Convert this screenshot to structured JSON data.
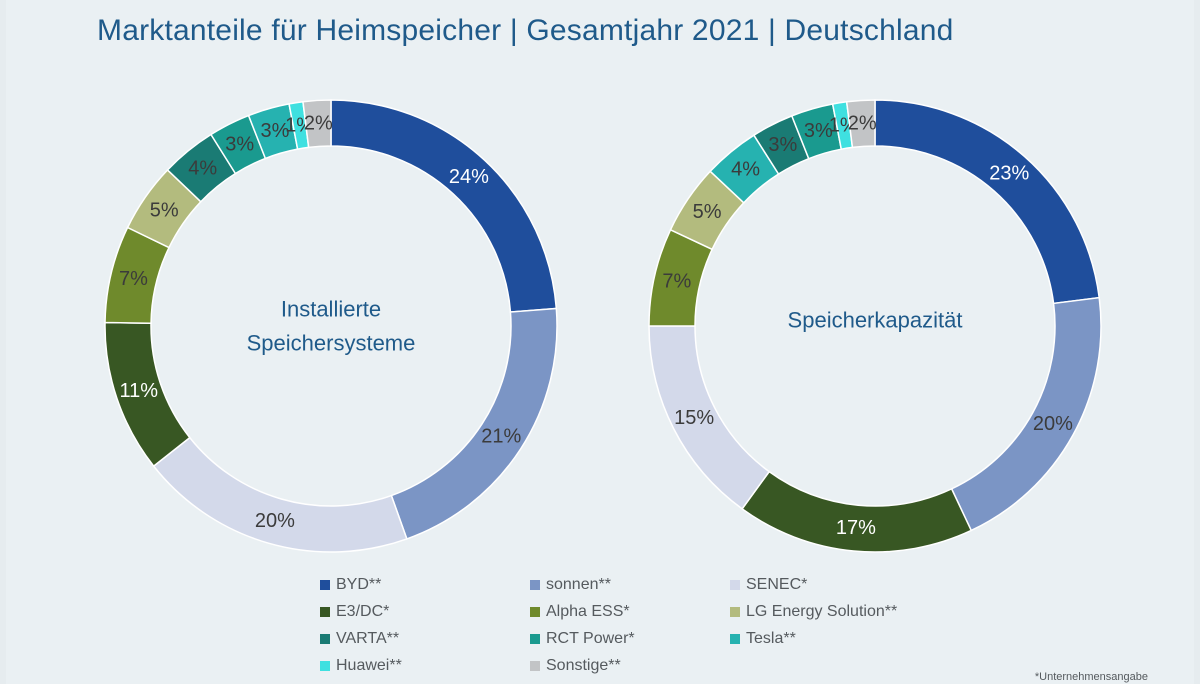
{
  "title": "Marktanteile für Heimspeicher | Gesamtjahr 2021 | Deutschland",
  "footnote": "*Unternehmensangabe",
  "chart_data": [
    {
      "type": "donut",
      "center_label": [
        "Installierte",
        "Speichersysteme"
      ],
      "slices": [
        {
          "name": "BYD**",
          "value": 24,
          "label": "24%",
          "color": "#1f4e9c",
          "label_color": "#ffffff"
        },
        {
          "name": "sonnen**",
          "value": 21,
          "label": "21%",
          "color": "#7b95c5",
          "label_color": "#3b3b3b"
        },
        {
          "name": "SENEC*",
          "value": 20,
          "label": "20%",
          "color": "#d3d9ea",
          "label_color": "#3b3b3b"
        },
        {
          "name": "E3/DC*",
          "value": 11,
          "label": "11%",
          "color": "#385723",
          "label_color": "#ffffff"
        },
        {
          "name": "Alpha ESS*",
          "value": 7,
          "label": "7%",
          "color": "#6f8a2c",
          "label_color": "#3b3b3b"
        },
        {
          "name": "LG Energy Solution**",
          "value": 5,
          "label": "5%",
          "color": "#b3bb7e",
          "label_color": "#3b3b3b"
        },
        {
          "name": "VARTA**",
          "value": 4,
          "label": "4%",
          "color": "#1a7b74",
          "label_color": "#3b3b3b"
        },
        {
          "name": "RCT Power*",
          "value": 3,
          "label": "3%",
          "color": "#1a9a8f",
          "label_color": "#3b3b3b"
        },
        {
          "name": "Tesla**",
          "value": 3,
          "label": "3%",
          "color": "#26b2b0",
          "label_color": "#3b3b3b"
        },
        {
          "name": "Huawei**",
          "value": 1,
          "label": "1%",
          "color": "#3fe0e0",
          "label_color": "#3b3b3b"
        },
        {
          "name": "Sonstige**",
          "value": 2,
          "label": "2%",
          "color": "#c2c4c6",
          "label_color": "#3b3b3b"
        }
      ]
    },
    {
      "type": "donut",
      "center_label": [
        "Speicherkapazität"
      ],
      "slices": [
        {
          "name": "BYD**",
          "value": 23,
          "label": "23%",
          "color": "#1f4e9c",
          "label_color": "#ffffff"
        },
        {
          "name": "sonnen**",
          "value": 20,
          "label": "20%",
          "color": "#7b95c5",
          "label_color": "#3b3b3b"
        },
        {
          "name": "E3/DC*",
          "value": 17,
          "label": "17%",
          "color": "#385723",
          "label_color": "#ffffff"
        },
        {
          "name": "SENEC*",
          "value": 15,
          "label": "15%",
          "color": "#d3d9ea",
          "label_color": "#3b3b3b"
        },
        {
          "name": "Alpha ESS*",
          "value": 7,
          "label": "7%",
          "color": "#6f8a2c",
          "label_color": "#3b3b3b"
        },
        {
          "name": "LG Energy Solution**",
          "value": 5,
          "label": "5%",
          "color": "#b3bb7e",
          "label_color": "#3b3b3b"
        },
        {
          "name": "Tesla**",
          "value": 4,
          "label": "4%",
          "color": "#26b2b0",
          "label_color": "#3b3b3b"
        },
        {
          "name": "VARTA**",
          "value": 3,
          "label": "3%",
          "color": "#1a7b74",
          "label_color": "#3b3b3b"
        },
        {
          "name": "RCT Power*",
          "value": 3,
          "label": "3%",
          "color": "#1a9a8f",
          "label_color": "#3b3b3b"
        },
        {
          "name": "Huawei**",
          "value": 1,
          "label": "1%",
          "color": "#3fe0e0",
          "label_color": "#3b3b3b"
        },
        {
          "name": "Sonstige**",
          "value": 2,
          "label": "2%",
          "color": "#c2c4c6",
          "label_color": "#3b3b3b"
        }
      ]
    }
  ],
  "legend": [
    {
      "label": "BYD**",
      "color": "#1f4e9c"
    },
    {
      "label": "sonnen**",
      "color": "#7b95c5"
    },
    {
      "label": "SENEC*",
      "color": "#d3d9ea"
    },
    {
      "label": "E3/DC*",
      "color": "#385723"
    },
    {
      "label": "Alpha ESS*",
      "color": "#6f8a2c"
    },
    {
      "label": "LG Energy Solution**",
      "color": "#b3bb7e"
    },
    {
      "label": "VARTA**",
      "color": "#1a7b74"
    },
    {
      "label": "RCT Power*",
      "color": "#1a9a8f"
    },
    {
      "label": "Tesla**",
      "color": "#26b2b0"
    },
    {
      "label": "Huawei**",
      "color": "#3fe0e0"
    },
    {
      "label": "Sonstige**",
      "color": "#c2c4c6"
    }
  ]
}
